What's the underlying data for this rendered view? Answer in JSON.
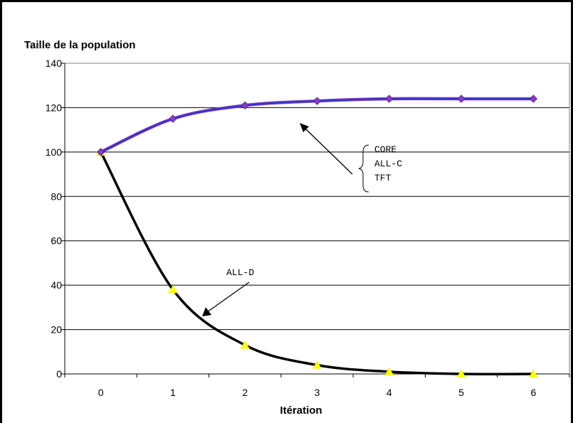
{
  "chart_data": {
    "type": "line",
    "title": "",
    "ylabel": "Taille de la population",
    "xlabel": "Itération",
    "x": [
      0,
      1,
      2,
      3,
      4,
      5,
      6
    ],
    "ylim": [
      0,
      140
    ],
    "yticks": [
      0,
      20,
      40,
      60,
      80,
      100,
      120,
      140
    ],
    "grid": "horizontal",
    "series": [
      {
        "name": "CORE / ALL-C / TFT",
        "values": [
          100,
          115,
          121,
          123,
          124,
          124,
          124
        ],
        "line_color": "#3333cc",
        "marker": "diamond",
        "marker_color": "#9933cc"
      },
      {
        "name": "ALL-D",
        "values": [
          100,
          38,
          13,
          4,
          1,
          0,
          0
        ],
        "line_color": "#000000",
        "marker": "triangle",
        "marker_color": "#ffff00"
      }
    ],
    "annotations": {
      "group_labels": [
        "CORE",
        "ALL-C",
        "TFT"
      ],
      "alld_label": "ALL-D"
    }
  }
}
